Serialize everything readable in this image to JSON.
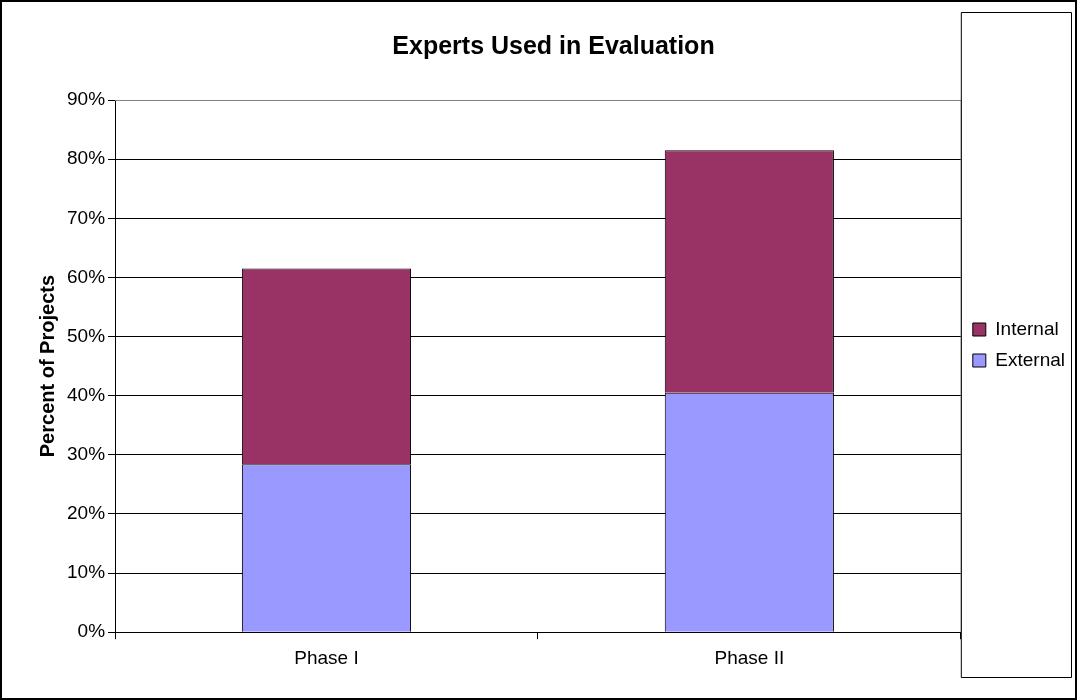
{
  "chart_data": {
    "type": "bar",
    "title": "Experts Used in Evaluation",
    "ylabel": "Percent of Projects",
    "categories": [
      "Phase I",
      "Phase II"
    ],
    "stacked": true,
    "series": [
      {
        "name": "External",
        "color": "#9999ff",
        "values": [
          28.4,
          40.5
        ]
      },
      {
        "name": "Internal",
        "color": "#993366",
        "values": [
          33.1,
          41.0
        ]
      }
    ],
    "ylim": [
      0,
      90
    ],
    "yticks": [
      {
        "value": 0,
        "label": "0%"
      },
      {
        "value": 10,
        "label": "10%"
      },
      {
        "value": 20,
        "label": "20%"
      },
      {
        "value": 30,
        "label": "30%"
      },
      {
        "value": 40,
        "label": "40%"
      },
      {
        "value": 50,
        "label": "50%"
      },
      {
        "value": 60,
        "label": "60%"
      },
      {
        "value": 70,
        "label": "70%"
      },
      {
        "value": 80,
        "label": "80%"
      },
      {
        "value": 90,
        "label": "90%"
      }
    ],
    "grid": "y",
    "legend": "right"
  }
}
